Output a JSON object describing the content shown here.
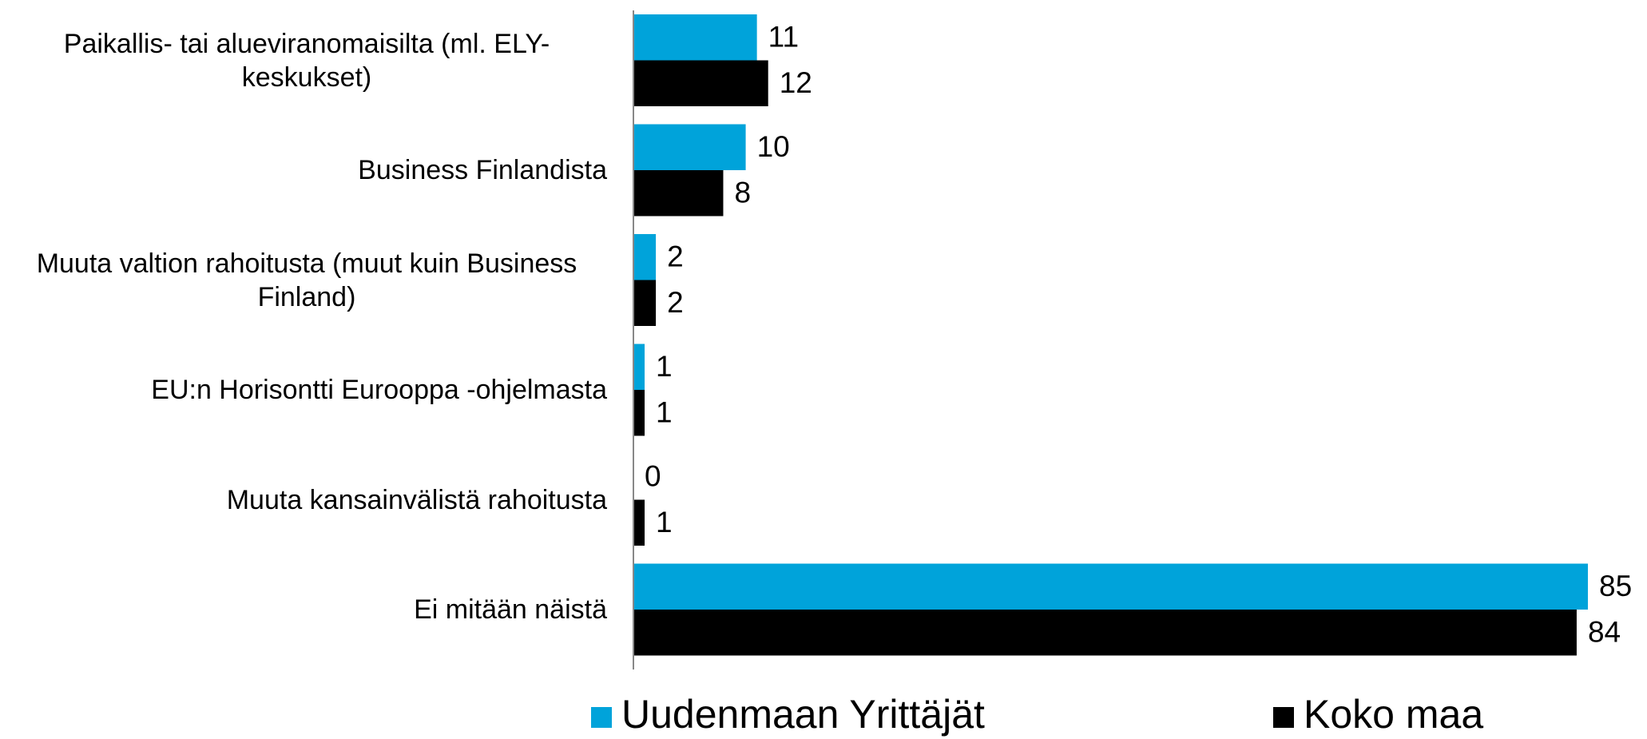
{
  "chart_data": {
    "type": "bar",
    "orientation": "horizontal",
    "categories": [
      "Paikallis- tai alueviranomaisilta (ml. ELY-keskukset)",
      "Business Finlandista",
      "Muuta valtion rahoitusta (muut kuin Business Finland)",
      "EU:n Horisontti Eurooppa -ohjelmasta",
      "Muuta kansainvälistä rahoitusta",
      "Ei mitään näistä"
    ],
    "series": [
      {
        "name": "Uudenmaan Yrittäjät",
        "color": "#00a3da",
        "values": [
          11,
          10,
          2,
          1,
          0,
          85
        ]
      },
      {
        "name": "Koko maa",
        "color": "#000000",
        "values": [
          12,
          8,
          2,
          1,
          1,
          84
        ]
      }
    ],
    "legend": "bottom"
  }
}
